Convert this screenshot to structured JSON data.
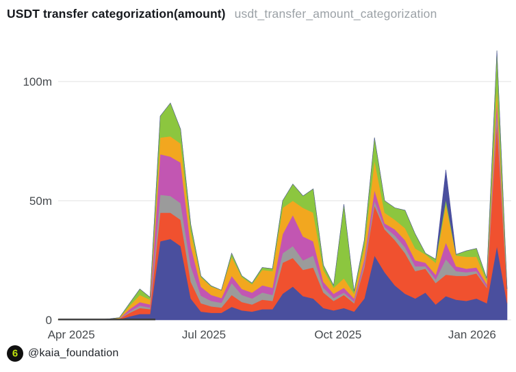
{
  "header": {
    "title": "USDT transfer categorization(amount)",
    "subtitle": "usdt_transfer_amount_categorization"
  },
  "footer": {
    "logo_glyph": "6",
    "handle": "@kaia_foundation"
  },
  "colors": {
    "background": "#ffffff",
    "gridline": "#e7e7e7",
    "tick_label": "#45494d",
    "zero_baseline": "#3a3a3a",
    "logo_bg": "#101010",
    "logo_glyph": "#bfe30e"
  },
  "chart_data": {
    "type": "area",
    "stacked": true,
    "title": "USDT transfer categorization(amount)",
    "xlabel": "",
    "ylabel": "",
    "unit": "millions (m = million USDT)",
    "legend": "none",
    "grid": "horizontal",
    "ylim": [
      0,
      115
    ],
    "y_ticks": [
      {
        "label": "0",
        "value": 0
      },
      {
        "label": "50m",
        "value": 50
      },
      {
        "label": "100m",
        "value": 100
      }
    ],
    "x_ticks": [
      {
        "label": "Apr 2025",
        "day_offset": 9
      },
      {
        "label": "Jul 2025",
        "day_offset": 100
      },
      {
        "label": "Oct 2025",
        "day_offset": 192
      },
      {
        "label": "Jan 2026",
        "day_offset": 284
      }
    ],
    "x": [
      "2025-03-23",
      "2025-03-30",
      "2025-04-06",
      "2025-04-13",
      "2025-04-20",
      "2025-04-27",
      "2025-05-04",
      "2025-05-11",
      "2025-05-18",
      "2025-05-25",
      "2025-06-01",
      "2025-06-08",
      "2025-06-15",
      "2025-06-22",
      "2025-06-29",
      "2025-07-06",
      "2025-07-13",
      "2025-07-20",
      "2025-07-27",
      "2025-08-03",
      "2025-08-10",
      "2025-08-17",
      "2025-08-24",
      "2025-08-31",
      "2025-09-07",
      "2025-09-14",
      "2025-09-21",
      "2025-09-28",
      "2025-10-05",
      "2025-10-12",
      "2025-10-19",
      "2025-10-26",
      "2025-11-02",
      "2025-11-09",
      "2025-11-16",
      "2025-11-23",
      "2025-11-30",
      "2025-12-07",
      "2025-12-14",
      "2025-12-21",
      "2025-12-28",
      "2026-01-04",
      "2026-01-11",
      "2026-01-18",
      "2026-01-25"
    ],
    "series": [
      {
        "name": "navy",
        "color": "#4a4f9e",
        "values": [
          0.05,
          0.05,
          0.05,
          0.05,
          0.05,
          0.1,
          0.2,
          1.5,
          2.5,
          2.5,
          33,
          34,
          31,
          9,
          3.5,
          3,
          3,
          5.5,
          4,
          3.5,
          4.5,
          4.5,
          11,
          14,
          10,
          9,
          5,
          4,
          5,
          3.5,
          9,
          27,
          20,
          14.5,
          11,
          9,
          11.5,
          6.5,
          10,
          8.5,
          8,
          9,
          7,
          31,
          7
        ]
      },
      {
        "name": "red",
        "color": "#f0512f",
        "values": [
          0.05,
          0.05,
          0.05,
          0.05,
          0.05,
          0.1,
          0.2,
          1.5,
          2.5,
          2,
          12,
          11,
          11,
          7,
          3.5,
          2.7,
          2.2,
          5,
          3.5,
          3,
          4,
          3.5,
          13,
          12,
          11,
          13,
          6.5,
          4,
          5.5,
          3.5,
          13,
          21,
          18,
          19,
          17,
          11.5,
          10,
          9,
          9,
          10,
          10.5,
          10.5,
          6.5,
          52,
          5
        ]
      },
      {
        "name": "gray",
        "color": "#9b9b9b",
        "values": [
          0.02,
          0.02,
          0.02,
          0.02,
          0.02,
          0.05,
          0.1,
          0.5,
          1,
          0.7,
          7.5,
          7,
          7,
          6.5,
          3.2,
          2.3,
          2,
          5,
          3,
          2.5,
          3,
          2.5,
          4,
          5,
          4,
          5,
          2,
          1.2,
          1,
          0.8,
          1.5,
          2,
          1,
          2,
          2.5,
          2,
          1,
          1.5,
          6.5,
          2,
          1.5,
          1,
          0.5,
          4,
          0.2
        ]
      },
      {
        "name": "magenta",
        "color": "#c256b2",
        "values": [
          0.02,
          0.02,
          0.02,
          0.02,
          0.02,
          0.05,
          0.1,
          1,
          1.5,
          1.3,
          17,
          16.5,
          17,
          8.5,
          3.7,
          2.5,
          2,
          3,
          2.5,
          2.5,
          3,
          3,
          8,
          13,
          10,
          6,
          2.5,
          1.8,
          2,
          1.2,
          2,
          4.5,
          1.5,
          2.5,
          3,
          2.5,
          1.5,
          2,
          7,
          2,
          1.5,
          1.5,
          1,
          5,
          0.3
        ]
      },
      {
        "name": "gold",
        "color": "#f2a71f",
        "values": [
          0.03,
          0.03,
          0.03,
          0.03,
          0.03,
          0.1,
          0.3,
          1.5,
          3,
          2,
          7,
          8.5,
          8,
          6,
          4,
          3.5,
          3.3,
          8,
          5,
          3.5,
          6.5,
          7,
          11,
          6,
          12,
          12,
          5,
          2.5,
          4,
          2,
          5,
          12.5,
          4.5,
          4,
          5,
          5,
          3.5,
          5,
          16,
          4.5,
          5,
          4.5,
          1.5,
          6,
          0.3
        ]
      },
      {
        "name": "green",
        "color": "#8cc63f",
        "values": [
          0.02,
          0.02,
          0.02,
          0.02,
          0.02,
          0.05,
          0.1,
          1,
          2.5,
          1,
          9,
          14,
          6,
          3,
          0.5,
          0.3,
          0,
          1.5,
          0.5,
          0.5,
          1,
          1,
          3,
          7,
          5,
          10,
          2,
          1,
          31,
          1,
          3,
          9.5,
          5,
          5,
          7.5,
          6,
          0.5,
          1.5,
          2,
          0.5,
          2.5,
          3.5,
          1,
          15,
          0.2
        ]
      },
      {
        "name": "navy-2",
        "color": "#4a4f9e",
        "values": [
          0,
          0,
          0,
          0,
          0,
          0,
          0,
          0,
          0,
          0,
          0,
          0,
          0,
          0,
          0,
          0,
          0,
          0,
          0,
          0,
          0,
          0,
          0,
          0,
          0,
          0,
          0,
          0,
          0,
          0,
          0,
          0,
          0,
          0,
          0,
          0,
          0,
          0,
          12.5,
          0,
          0,
          0,
          0,
          0,
          0
        ]
      }
    ]
  }
}
